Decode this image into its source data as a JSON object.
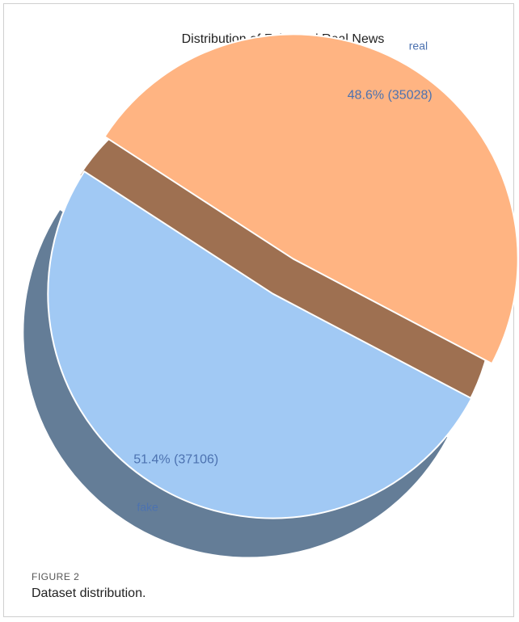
{
  "chart_data": {
    "type": "pie",
    "title": "Distribution of Fake and Real News",
    "slices": [
      {
        "label": "fake",
        "value": 37106,
        "percent": 51.4,
        "text": "51.4% (37106)",
        "color": "#a1c9f4"
      },
      {
        "label": "real",
        "value": 35028,
        "percent": 48.6,
        "text": "48.6% (35028)",
        "color": "#ffb482"
      }
    ],
    "exploded": true,
    "shadow": true,
    "label_color": "#4c72b0"
  },
  "figure": {
    "number": "FIGURE 2",
    "caption": "Dataset distribution."
  }
}
